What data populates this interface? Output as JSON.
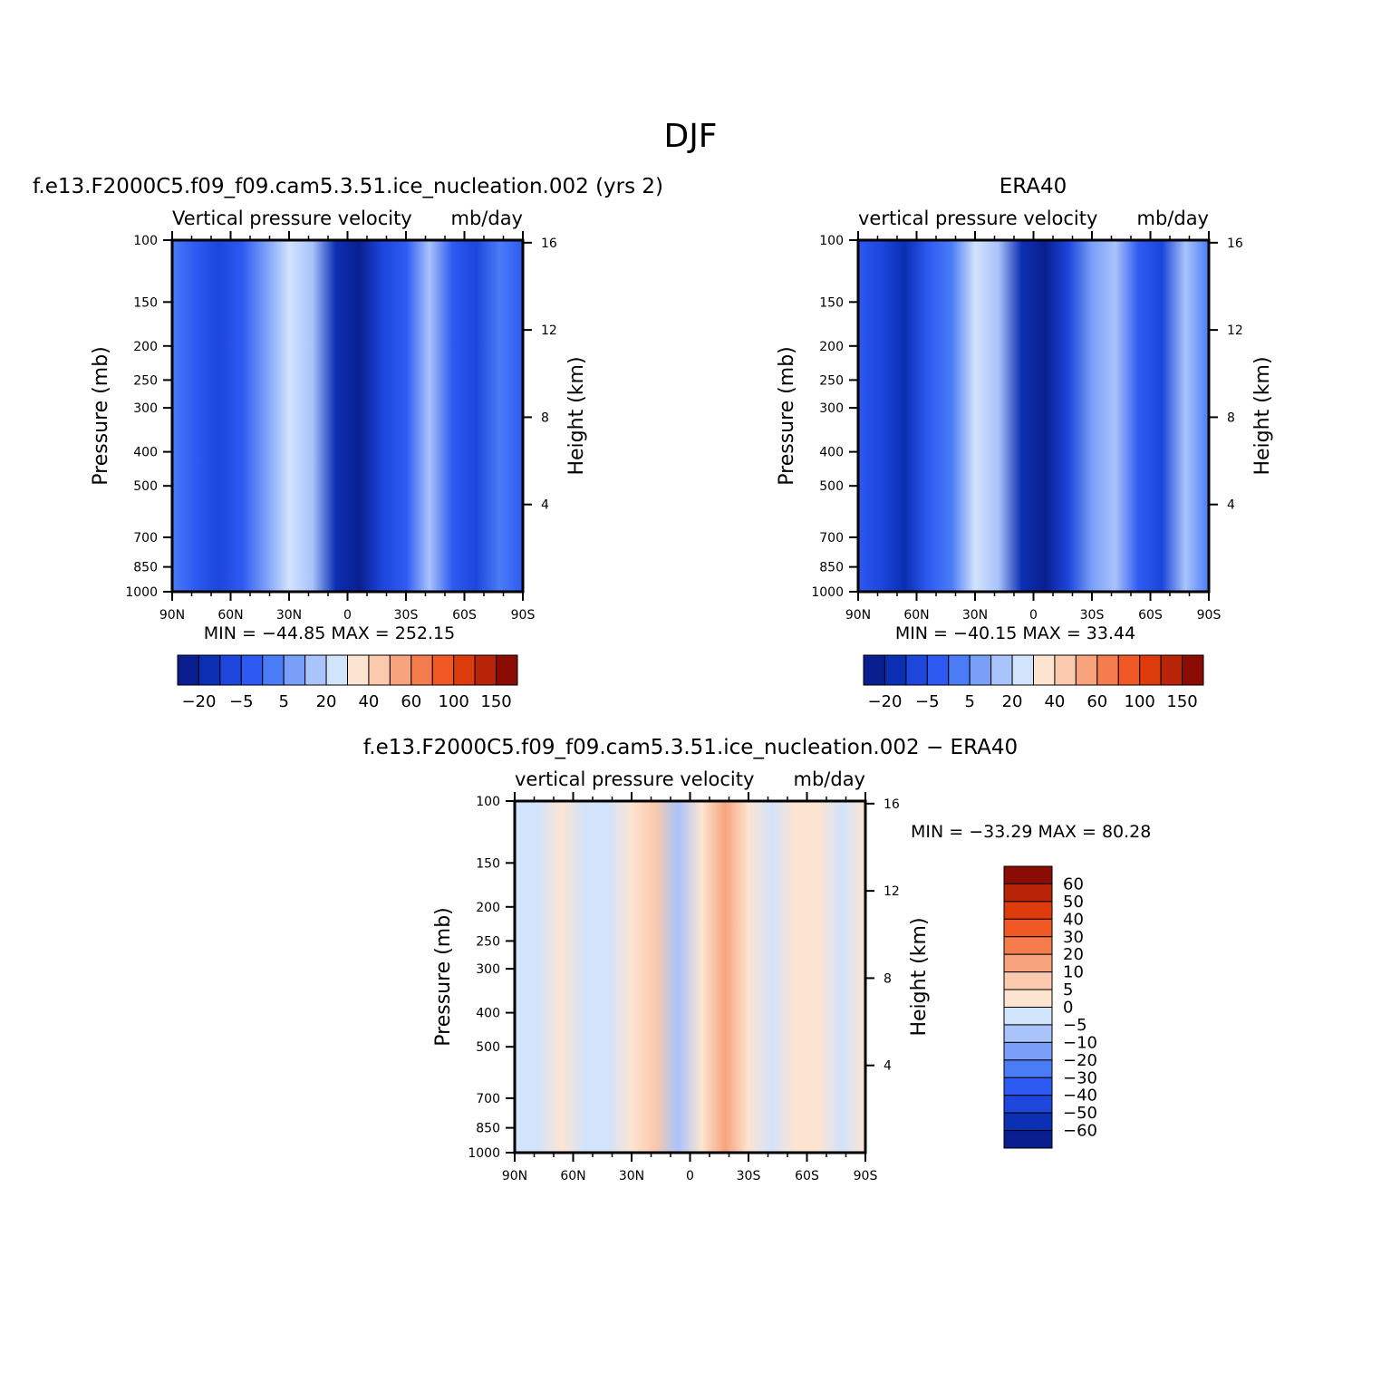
{
  "figure": {
    "main_title": "DJF"
  },
  "chart_data": [
    {
      "type": "heatmap",
      "panel": "model",
      "title": "f.e13.F2000C5.f09_f09.cam5.3.51.ice_nucleation.002 (yrs 2)",
      "subtitle": "Vertical pressure velocity",
      "units": "mb/day",
      "ylabel": "Pressure (mb)",
      "y2label": "Height (km)",
      "x_ticks": [
        "90N",
        "60N",
        "30N",
        "0",
        "30S",
        "60S",
        "90S"
      ],
      "y_ticks": [
        "100",
        "150",
        "200",
        "250",
        "300",
        "400",
        "500",
        "700",
        "850",
        "1000"
      ],
      "y2_ticks": [
        "16",
        "12",
        "8",
        "4"
      ],
      "stats": {
        "min_label": "MIN",
        "min_value": "-44.85",
        "max_label": "MAX",
        "max_value": "252.15"
      },
      "colorbar": {
        "orientation": "horizontal",
        "labels": [
          "-20",
          "-5",
          "5",
          "20",
          "40",
          "60",
          "100",
          "150"
        ],
        "colors": [
          "#0a1f8f",
          "#0b2fb3",
          "#1c46dc",
          "#2d5af2",
          "#4a7cf7",
          "#7a9ff8",
          "#a9c3fb",
          "#d2e3fc",
          "#fde4d1",
          "#fbc9ad",
          "#f7a37d",
          "#f57c4c",
          "#f25726",
          "#dd3b0c",
          "#b82408",
          "#8a0c05"
        ]
      }
    },
    {
      "type": "heatmap",
      "panel": "obs",
      "title": "ERA40",
      "subtitle": "vertical pressure velocity",
      "units": "mb/day",
      "ylabel": "Pressure (mb)",
      "y2label": "Height (km)",
      "x_ticks": [
        "90N",
        "60N",
        "30N",
        "0",
        "30S",
        "60S",
        "90S"
      ],
      "y_ticks": [
        "100",
        "150",
        "200",
        "250",
        "300",
        "400",
        "500",
        "700",
        "850",
        "1000"
      ],
      "y2_ticks": [
        "16",
        "12",
        "8",
        "4"
      ],
      "stats": {
        "min_label": "MIN",
        "min_value": "-40.15",
        "max_label": "MAX",
        "max_value": "33.44"
      },
      "colorbar": {
        "orientation": "horizontal",
        "labels": [
          "-20",
          "-5",
          "5",
          "20",
          "40",
          "60",
          "100",
          "150"
        ],
        "colors": [
          "#0a1f8f",
          "#0b2fb3",
          "#1c46dc",
          "#2d5af2",
          "#4a7cf7",
          "#7a9ff8",
          "#a9c3fb",
          "#d2e3fc",
          "#fde4d1",
          "#fbc9ad",
          "#f7a37d",
          "#f57c4c",
          "#f25726",
          "#dd3b0c",
          "#b82408",
          "#8a0c05"
        ]
      }
    },
    {
      "type": "heatmap",
      "panel": "difference",
      "title": "f.e13.F2000C5.f09_f09.cam5.3.51.ice_nucleation.002 - ERA40",
      "subtitle": "vertical pressure velocity",
      "units": "mb/day",
      "ylabel": "Pressure (mb)",
      "y2label": "Height (km)",
      "x_ticks": [
        "90N",
        "60N",
        "30N",
        "0",
        "30S",
        "60S",
        "90S"
      ],
      "y_ticks": [
        "100",
        "150",
        "200",
        "250",
        "300",
        "400",
        "500",
        "700",
        "850",
        "1000"
      ],
      "y2_ticks": [
        "16",
        "12",
        "8",
        "4"
      ],
      "stats": {
        "min_label": "MIN",
        "min_value": "-33.29",
        "max_label": "MAX",
        "max_value": "80.28"
      },
      "colorbar": {
        "orientation": "vertical",
        "labels": [
          "60",
          "50",
          "40",
          "30",
          "20",
          "10",
          "5",
          "0",
          "-5",
          "-10",
          "-20",
          "-30",
          "-40",
          "-50",
          "-60"
        ],
        "colors": [
          "#8a0c05",
          "#b82408",
          "#dd3b0c",
          "#f25726",
          "#f57c4c",
          "#f7a37d",
          "#fbc9ad",
          "#fde4d1",
          "#d2e3fc",
          "#a9c3fb",
          "#7a9ff8",
          "#4a7cf7",
          "#2d5af2",
          "#1c46dc",
          "#0b2fb3",
          "#0a1f8f"
        ]
      }
    }
  ]
}
